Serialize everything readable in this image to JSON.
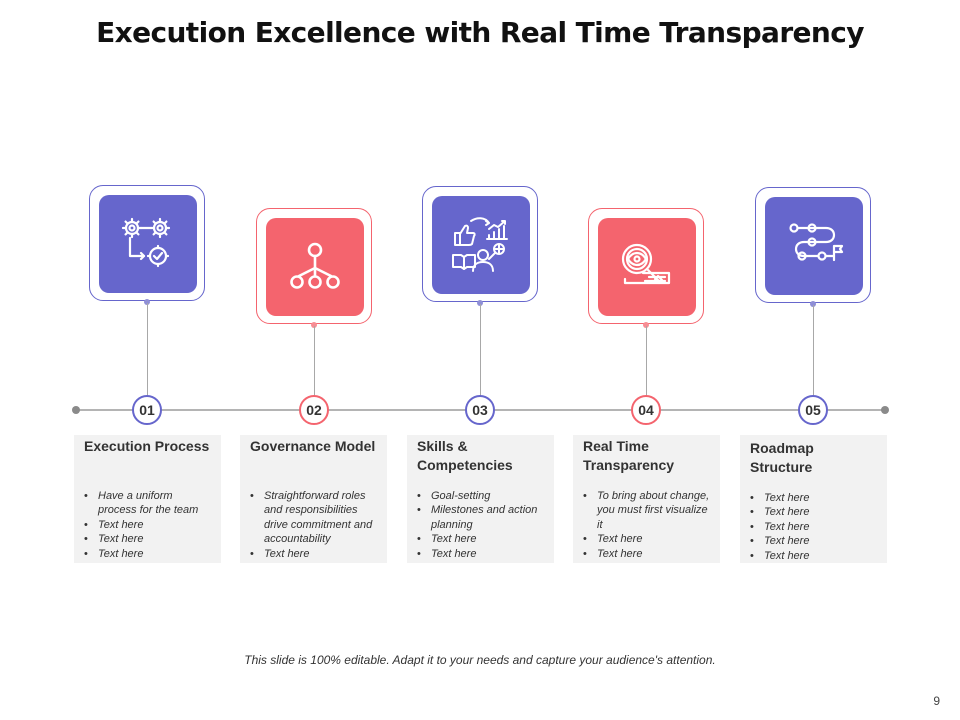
{
  "title": "Execution Excellence with Real Time Transparency",
  "colors": {
    "purple": "#6666cc",
    "coral": "#f4646e",
    "line": "#b4b4b4",
    "card_bg": "#f2f2f2"
  },
  "steps": [
    {
      "number": "01",
      "title": "Execution Process",
      "icon": "gears-workflow-icon",
      "color": "purple",
      "bullets": [
        "Have a uniform process for the team",
        "Text here",
        "Text here",
        "Text here"
      ]
    },
    {
      "number": "02",
      "title": "Governance Model",
      "icon": "hierarchy-icon",
      "color": "coral",
      "bullets": [
        "Straightforward roles and responsibilities drive commitment and accountability",
        "Text here"
      ]
    },
    {
      "number": "03",
      "title": "Skills & Competencies",
      "icon": "skills-icon",
      "color": "purple",
      "bullets": [
        "Goal-setting",
        "Milestones and action planning",
        "Text here",
        "Text here"
      ]
    },
    {
      "number": "04",
      "title": "Real Time Transparency",
      "icon": "magnifier-eye-icon",
      "color": "coral",
      "bullets": [
        "To bring about change, you must first visualize it",
        "Text here",
        "Text here"
      ]
    },
    {
      "number": "05",
      "title": "Roadmap Structure",
      "icon": "roadmap-icon",
      "color": "purple",
      "bullets": [
        "Text here",
        "Text here",
        "Text here",
        "Text here",
        "Text here"
      ]
    }
  ],
  "footer": "This slide is 100% editable. Adapt it to your needs and capture your audience's attention.",
  "page_number": "9"
}
